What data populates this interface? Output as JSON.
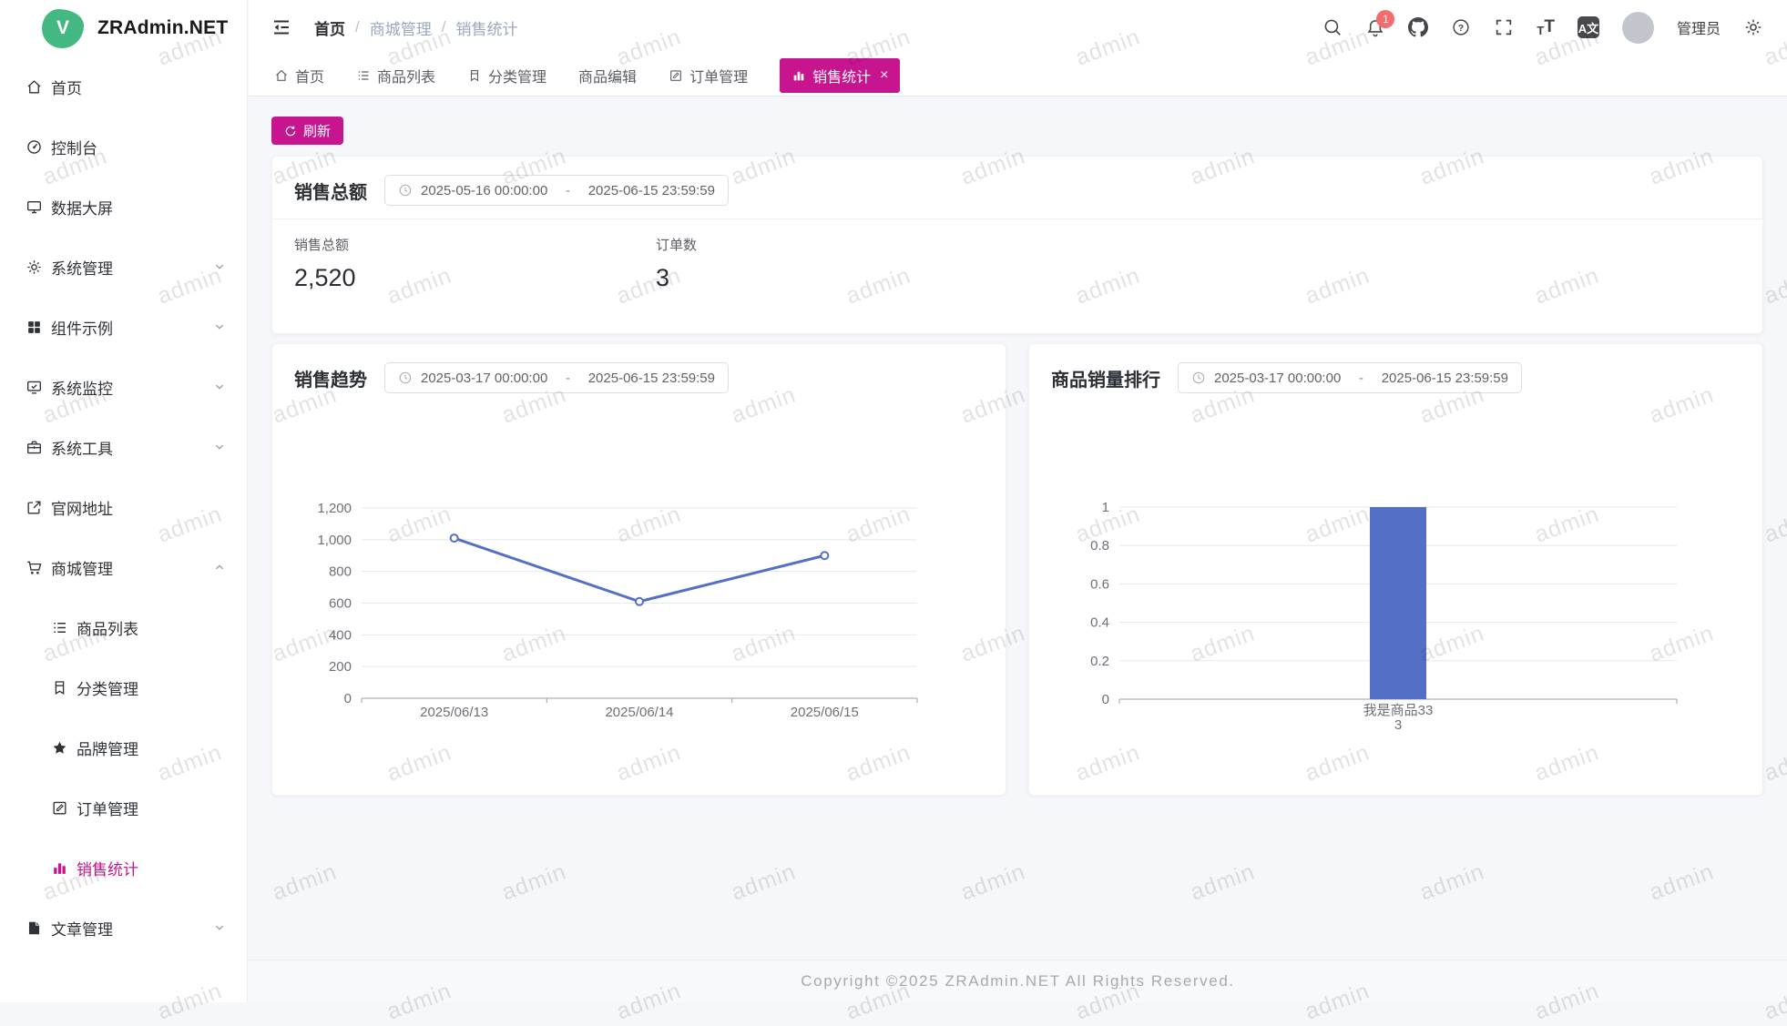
{
  "app": {
    "name": "ZRAdmin.NET",
    "logo_letter": "V"
  },
  "colors": {
    "primary": "#c7158f",
    "badge_red": "#f56c6c",
    "logo_green": "#43b883",
    "chart_line": "#5470c6",
    "chart_bar": "#5470c6"
  },
  "header": {
    "breadcrumb": [
      "首页",
      "商城管理",
      "销售统计"
    ],
    "breadcrumb_separator": "/",
    "notification_count": "1",
    "user": "管理员",
    "language_glyph": "A文",
    "font_size_glyph_small": "T",
    "font_size_glyph_big": "T"
  },
  "sidebar": {
    "items": [
      {
        "label": "首页",
        "icon": "home-icon"
      },
      {
        "label": "控制台",
        "icon": "dashboard-icon"
      },
      {
        "label": "数据大屏",
        "icon": "screen-icon"
      },
      {
        "label": "系统管理",
        "icon": "settings-icon",
        "expandable": true
      },
      {
        "label": "组件示例",
        "icon": "components-icon",
        "expandable": true
      },
      {
        "label": "系统监控",
        "icon": "monitor-icon",
        "expandable": true
      },
      {
        "label": "系统工具",
        "icon": "tools-icon",
        "expandable": true
      },
      {
        "label": "官网地址",
        "icon": "external-link-icon"
      },
      {
        "label": "商城管理",
        "icon": "cart-icon",
        "expandable": true,
        "expanded": true
      },
      {
        "label": "商品列表",
        "icon": "list-icon",
        "sub": true
      },
      {
        "label": "分类管理",
        "icon": "category-icon",
        "sub": true
      },
      {
        "label": "品牌管理",
        "icon": "star-icon",
        "sub": true
      },
      {
        "label": "订单管理",
        "icon": "order-icon",
        "sub": true
      },
      {
        "label": "销售统计",
        "icon": "chart-bar-icon",
        "sub": true,
        "active": true
      },
      {
        "label": "文章管理",
        "icon": "article-icon",
        "expandable": true
      }
    ]
  },
  "tabs": [
    {
      "label": "首页",
      "icon": "home-icon"
    },
    {
      "label": "商品列表",
      "icon": "list-icon"
    },
    {
      "label": "分类管理",
      "icon": "category-icon"
    },
    {
      "label": "商品编辑"
    },
    {
      "label": "订单管理",
      "icon": "order-icon"
    },
    {
      "label": "销售统计",
      "icon": "chart-bar-icon",
      "active": true,
      "closable": true,
      "close_glyph": "×"
    }
  ],
  "toolbar": {
    "refresh_label": "刷新"
  },
  "cards": {
    "sales_summary": {
      "title": "销售总额",
      "date_start": "2025-05-16 00:00:00",
      "date_separator": "-",
      "date_end": "2025-06-15 23:59:59",
      "stats": [
        {
          "label": "销售总额",
          "value": "2,520"
        },
        {
          "label": "订单数",
          "value": "3"
        }
      ]
    },
    "trend": {
      "date_start": "2025-03-17 00:00:00",
      "date_separator": "-",
      "date_end": "2025-06-15 23:59:59"
    },
    "rank": {
      "date_start": "2025-03-17 00:00:00",
      "date_separator": "-",
      "date_end": "2025-06-15 23:59:59"
    }
  },
  "chart_data": [
    {
      "type": "line",
      "title": "销售趋势",
      "x": [
        "2025/06/13",
        "2025/06/14",
        "2025/06/15"
      ],
      "values": [
        1010,
        610,
        900
      ],
      "ylim": [
        0,
        1200
      ],
      "ytick_step": 200,
      "grid": true,
      "legend": false,
      "line_color": "#5470c6"
    },
    {
      "type": "bar",
      "title": "商品销量排行",
      "categories": [
        "我是商品333"
      ],
      "category_display_lines": [
        [
          "我是商品33",
          "3"
        ]
      ],
      "values": [
        1
      ],
      "ylim": [
        0,
        1
      ],
      "ytick_step": 0.2,
      "grid": true,
      "legend": false,
      "bar_color": "#5470c6"
    }
  ],
  "watermark": {
    "text": "admin"
  },
  "footer": {
    "copyright": "Copyright ©2025 ZRAdmin.NET All Rights Reserved."
  }
}
